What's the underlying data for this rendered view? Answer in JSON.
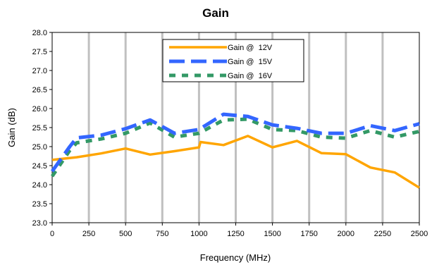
{
  "chart_data": {
    "type": "line",
    "title": "Gain",
    "xlabel": "Frequency (MHz)",
    "ylabel": "Gain (dB)",
    "xlim": [
      0,
      2500
    ],
    "ylim": [
      23.0,
      28.0
    ],
    "x_ticks": [
      "0",
      "250",
      "500",
      "750",
      "1000",
      "1250",
      "1500",
      "1750",
      "2000",
      "2250",
      "2500"
    ],
    "y_ticks": [
      "23.0",
      "23.5",
      "24.0",
      "24.5",
      "25.0",
      "25.5",
      "26.0",
      "26.5",
      "27.0",
      "27.5",
      "28.0"
    ],
    "grid": "vertical",
    "legend_position": "top-center",
    "series": [
      {
        "name": "Gain @  12V",
        "color": "#FFA500",
        "style": "solid",
        "x": [
          0,
          167,
          333,
          500,
          667,
          833,
          1000,
          1010,
          1167,
          1333,
          1500,
          1667,
          1833,
          2000,
          2167,
          2333,
          2500
        ],
        "y": [
          24.65,
          24.72,
          24.82,
          24.95,
          24.79,
          24.88,
          24.98,
          25.12,
          25.04,
          25.28,
          24.98,
          25.15,
          24.83,
          24.8,
          24.45,
          24.32,
          23.92
        ]
      },
      {
        "name": "Gain @  15V",
        "color": "#3366FF",
        "style": "dashed",
        "x": [
          0,
          120,
          167,
          333,
          500,
          667,
          833,
          1000,
          1167,
          1333,
          1500,
          1667,
          1833,
          2000,
          2167,
          2333,
          2500
        ],
        "y": [
          24.35,
          25.0,
          25.23,
          25.3,
          25.47,
          25.7,
          25.35,
          25.45,
          25.85,
          25.79,
          25.57,
          25.48,
          25.35,
          25.35,
          25.55,
          25.42,
          25.6
        ]
      },
      {
        "name": "Gain @  16V",
        "color": "#339966",
        "style": "dotted",
        "x": [
          0,
          120,
          167,
          333,
          500,
          667,
          833,
          1000,
          1167,
          1333,
          1500,
          1667,
          1833,
          2000,
          2167,
          2333,
          2500
        ],
        "y": [
          24.22,
          24.9,
          25.1,
          25.2,
          25.35,
          25.62,
          25.25,
          25.35,
          25.7,
          25.72,
          25.45,
          25.42,
          25.25,
          25.22,
          25.42,
          25.25,
          25.4
        ]
      }
    ]
  }
}
